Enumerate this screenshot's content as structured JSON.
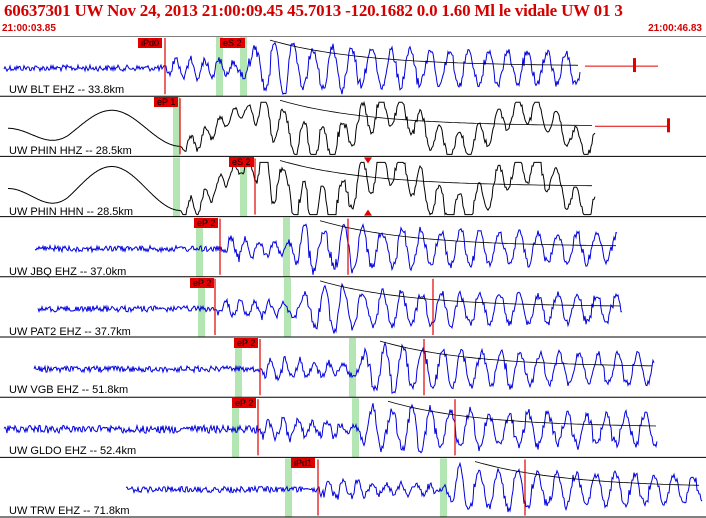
{
  "header": {
    "title": "60637301 UW Nov 24, 2013 21:00:09.45    45.7013 -120.1682  0.0 1.60 Ml le vidale UW 01    3",
    "time_start": "21:00:03.85",
    "time_end": "21:00:46.83"
  },
  "colors": {
    "header_red": "#d40000",
    "pick_red": "#e00000",
    "trace_blue": "#0000dd",
    "trace_black": "#000000",
    "window_green": "#b4e6b4"
  },
  "traces": [
    {
      "label": "UW BLT EHZ -- 33.8km",
      "color": "blue",
      "picks": [
        {
          "label": "iPd0"
        },
        {
          "label": "eS 2"
        }
      ]
    },
    {
      "label": "UW PHIN HHZ -- 28.5km",
      "color": "black",
      "picks": [
        {
          "label": "eP 1"
        }
      ]
    },
    {
      "label": "UW PHIN HHN -- 28.5km",
      "color": "black",
      "picks": [
        {
          "label": "eS 2"
        }
      ]
    },
    {
      "label": "UW JBQ EHZ -- 37.0km",
      "color": "blue",
      "picks": [
        {
          "label": "eP 2"
        }
      ]
    },
    {
      "label": "UW PAT2 EHZ -- 37.7km",
      "color": "blue",
      "picks": [
        {
          "label": "eP 2"
        }
      ]
    },
    {
      "label": "UW VGB EHZ -- 51.8km",
      "color": "blue",
      "picks": [
        {
          "label": "eP 2"
        }
      ]
    },
    {
      "label": "UW GLDO EHZ -- 52.4km",
      "color": "blue",
      "picks": [
        {
          "label": "eP 2"
        }
      ]
    },
    {
      "label": "UW TRW EHZ -- 71.8km",
      "color": "blue",
      "picks": [
        {
          "label": "iPd1"
        }
      ]
    }
  ]
}
